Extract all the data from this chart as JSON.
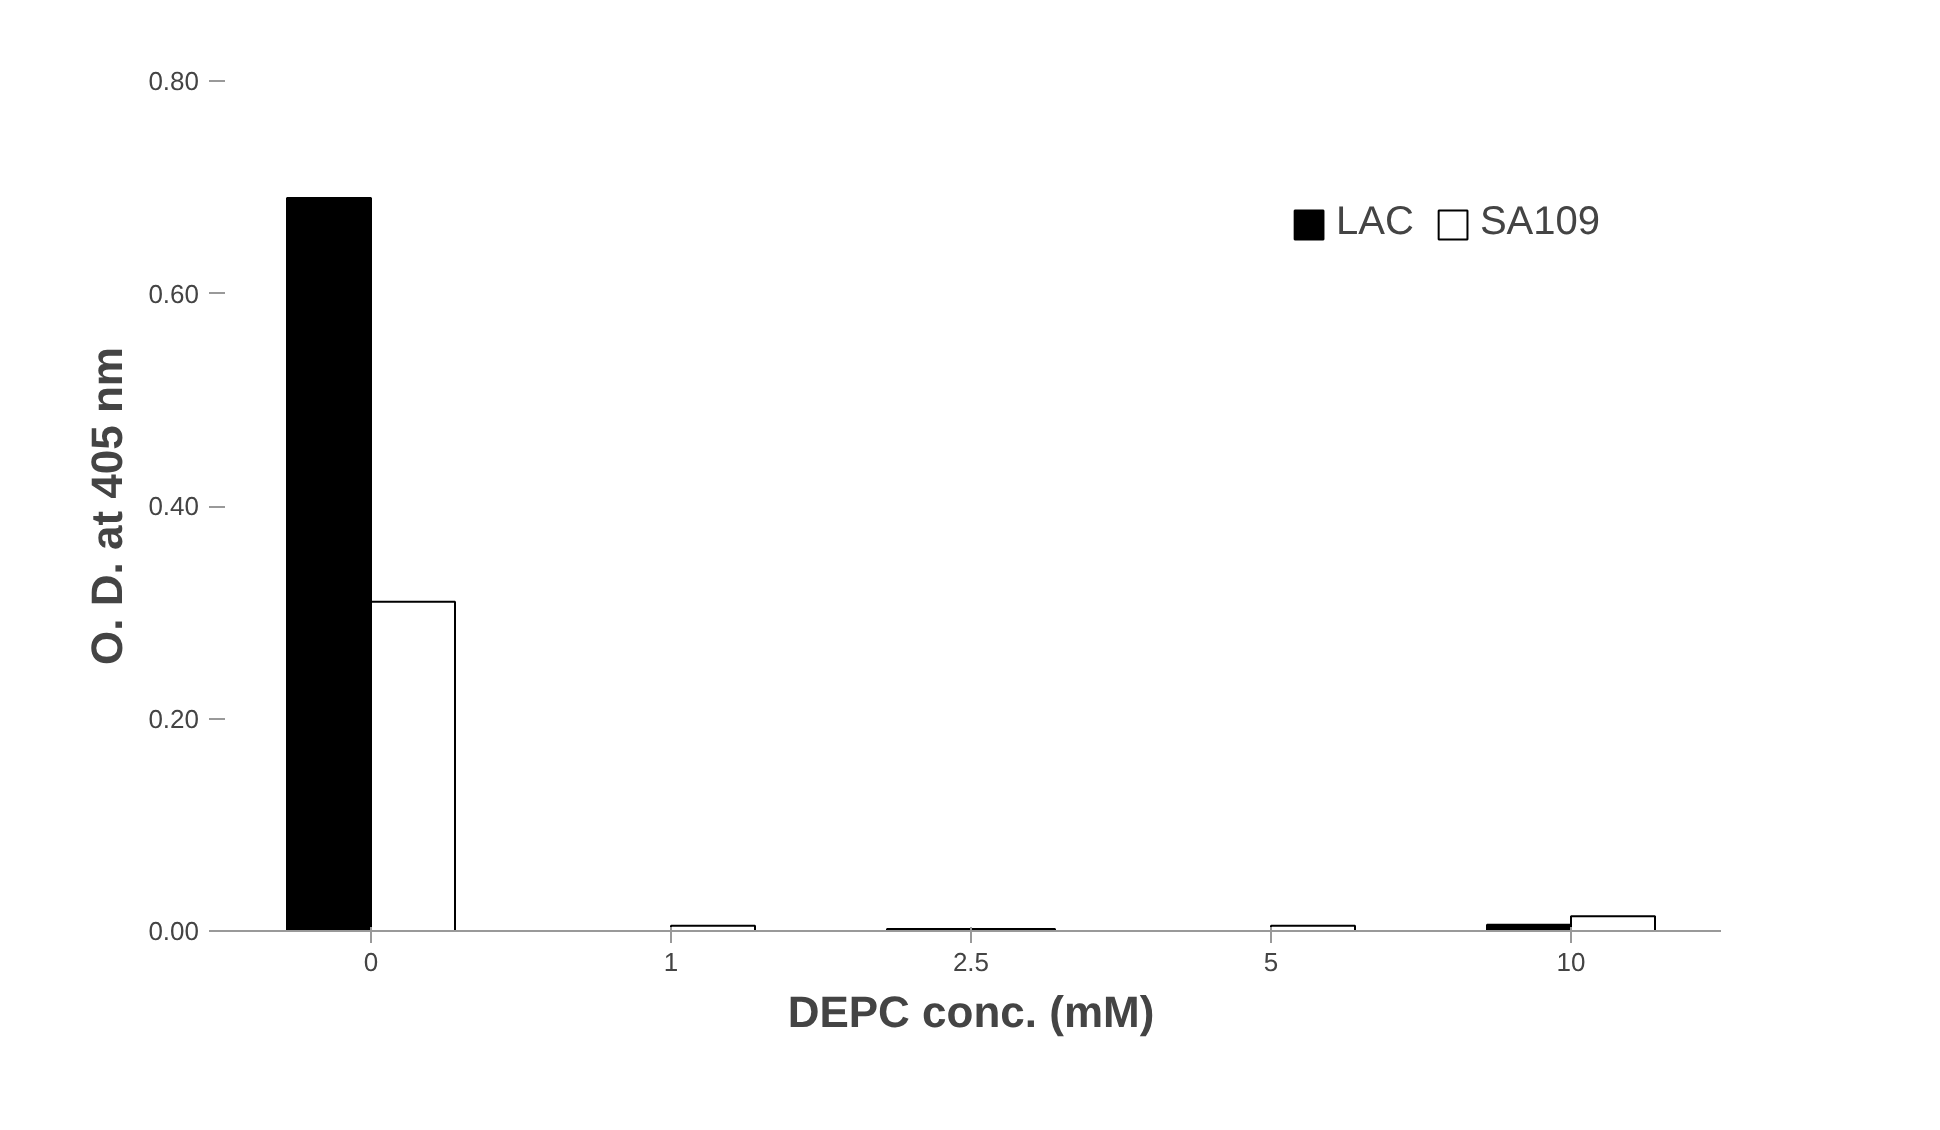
{
  "chart_data": {
    "type": "bar",
    "xlabel": "DEPC conc. (mM)",
    "ylabel": "O. D. at 405 nm",
    "categories": [
      "0",
      "1",
      "2.5",
      "5",
      "10"
    ],
    "series": [
      {
        "name": "LAC",
        "color": "#000000",
        "values": [
          0.69,
          null,
          0.002,
          null,
          0.006
        ]
      },
      {
        "name": "SA109",
        "color": "#ffffff",
        "values": [
          0.31,
          0.005,
          0.002,
          0.005,
          0.014
        ]
      }
    ],
    "ylim": [
      0,
      0.8
    ],
    "yticks": [
      {
        "value": 0,
        "label": "0.00"
      },
      {
        "value": 0.2,
        "label": "0.20"
      },
      {
        "value": 0.4,
        "label": "0.40"
      },
      {
        "value": 0.6,
        "label": "0.60"
      },
      {
        "value": 0.8,
        "label": "0.80"
      }
    ],
    "grid": false,
    "legend": "top right"
  }
}
